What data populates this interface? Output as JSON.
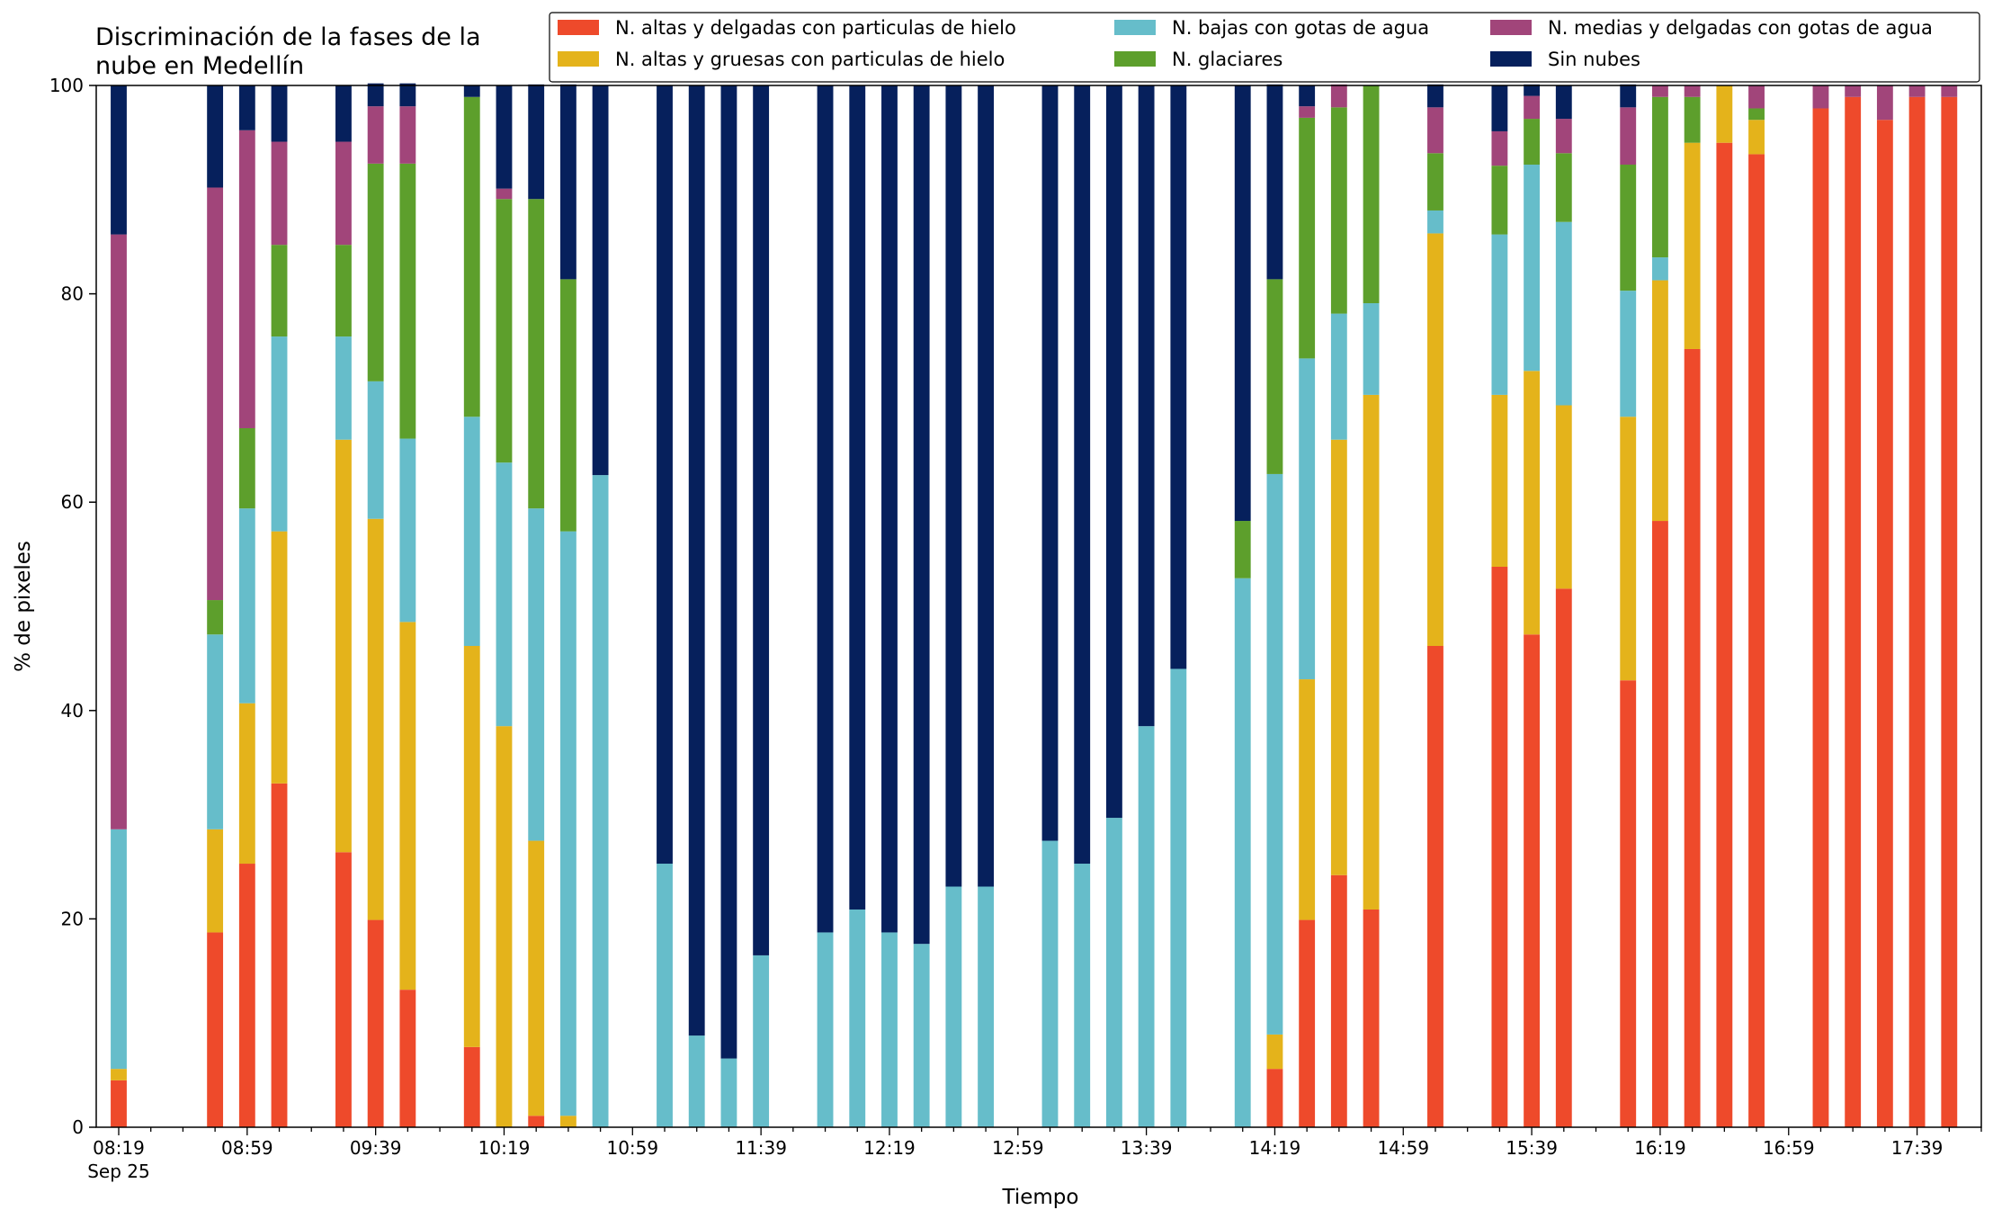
{
  "chart_data": {
    "type": "bar",
    "stacked": true,
    "title": "Discriminación de la fases de la nube en Medellín",
    "title_lines": [
      "Discriminación de la fases de la",
      "nube en Medellín"
    ],
    "xlabel": "Tiempo",
    "ylabel": "% de pixeles",
    "ylim": [
      0,
      100
    ],
    "yticks": [
      0,
      20,
      40,
      60,
      80,
      100
    ],
    "xlim_minutes_since_0819": [
      -7,
      580
    ],
    "interval_minutes": 10,
    "xtick_labels": [
      "08:19",
      "08:59",
      "09:39",
      "10:19",
      "10:59",
      "11:39",
      "12:19",
      "12:59",
      "13:39",
      "14:19",
      "14:59",
      "15:39",
      "16:19",
      "16:59",
      "17:39"
    ],
    "xtick_date": "Sep 25",
    "grid": false,
    "legend_position": "top",
    "x": [
      "08:19",
      "08:39",
      "08:49",
      "08:59",
      "09:09",
      "09:29",
      "09:39",
      "09:49",
      "10:09",
      "10:19",
      "10:29",
      "10:39",
      "10:49",
      "11:09",
      "11:19",
      "11:29",
      "11:39",
      "11:59",
      "12:09",
      "12:19",
      "12:29",
      "12:39",
      "12:49",
      "13:09",
      "13:19",
      "13:29",
      "13:39",
      "13:49",
      "14:09",
      "14:19",
      "14:29",
      "14:39",
      "14:49",
      "15:09",
      "15:29",
      "15:39",
      "15:49",
      "16:09",
      "16:19",
      "16:29",
      "16:39",
      "16:49",
      "17:09",
      "17:19",
      "17:29",
      "17:39",
      "17:49"
    ],
    "series": [
      {
        "name": "N. altas y delgadas con particulas de hielo",
        "color": "#ee4a2b",
        "values": [
          4.5,
          0,
          18.7,
          25.3,
          33.0,
          26.4,
          19.9,
          13.2,
          7.7,
          0,
          1.1,
          0,
          0,
          0,
          0,
          0,
          0,
          0,
          0,
          0,
          0,
          0,
          0,
          0,
          0,
          0,
          0,
          0,
          0,
          5.6,
          19.9,
          24.2,
          20.9,
          46.2,
          53.8,
          47.3,
          51.7,
          42.9,
          58.2,
          74.7,
          94.5,
          93.4,
          97.8,
          98.9,
          96.7,
          98.9,
          98.9
        ]
      },
      {
        "name": "N. altas y gruesas con particulas de hielo",
        "color": "#e4b31b",
        "values": [
          1.1,
          0,
          9.9,
          15.4,
          24.2,
          39.6,
          38.5,
          35.3,
          38.5,
          38.5,
          26.4,
          1.1,
          0,
          0,
          0,
          0,
          0,
          0,
          0,
          0,
          0,
          0,
          0,
          0,
          0,
          0,
          0,
          0,
          0,
          3.3,
          23.1,
          41.8,
          49.4,
          39.6,
          16.5,
          25.3,
          17.6,
          25.3,
          23.1,
          19.8,
          5.5,
          3.3,
          0,
          0,
          0,
          0,
          0
        ]
      },
      {
        "name": "N. bajas con gotas de agua",
        "color": "#66bdca",
        "values": [
          23.0,
          0,
          18.7,
          18.7,
          18.7,
          9.9,
          13.2,
          17.6,
          22.0,
          25.3,
          31.9,
          56.1,
          62.6,
          25.3,
          8.8,
          6.6,
          16.5,
          18.7,
          20.9,
          18.7,
          17.6,
          23.1,
          23.1,
          27.5,
          25.3,
          29.7,
          38.5,
          44.0,
          52.7,
          53.8,
          30.8,
          12.1,
          8.8,
          2.2,
          15.4,
          19.8,
          17.6,
          12.1,
          2.2,
          0,
          0,
          0,
          0,
          0,
          0,
          0,
          0
        ]
      },
      {
        "name": "N. glaciares",
        "color": "#5d9f2c",
        "values": [
          0,
          0,
          3.3,
          7.7,
          8.8,
          8.8,
          20.9,
          26.4,
          30.7,
          25.3,
          29.7,
          24.2,
          0,
          0,
          0,
          0,
          0,
          0,
          0,
          0,
          0,
          0,
          0,
          0,
          0,
          0,
          0,
          0,
          5.5,
          18.7,
          23.1,
          19.8,
          20.9,
          5.5,
          6.6,
          4.4,
          6.6,
          12.1,
          15.4,
          4.4,
          0,
          1.1,
          0,
          0,
          0,
          0,
          0
        ]
      },
      {
        "name": "N. medias y delgadas con gotas de agua",
        "color": "#a1457a",
        "values": [
          57.1,
          0,
          39.6,
          28.6,
          9.9,
          9.9,
          5.5,
          5.5,
          0,
          1.0,
          0,
          0,
          0,
          0,
          0,
          0,
          0,
          0,
          0,
          0,
          0,
          0,
          0,
          0,
          0,
          0,
          0,
          0,
          0,
          0,
          1.1,
          2.2,
          0,
          4.4,
          3.3,
          2.2,
          3.3,
          5.5,
          1.1,
          1.1,
          0,
          2.2,
          2.2,
          1.1,
          3.3,
          1.1,
          1.1
        ]
      },
      {
        "name": "Sin nubes",
        "color": "#06205c",
        "values": [
          14.3,
          0,
          9.8,
          4.3,
          5.4,
          5.4,
          2.2,
          2.2,
          1.1,
          9.9,
          11.0,
          18.7,
          37.4,
          74.7,
          91.2,
          93.4,
          83.5,
          81.3,
          79.1,
          81.3,
          82.4,
          76.9,
          76.9,
          72.5,
          74.7,
          70.3,
          61.5,
          56.0,
          41.8,
          18.7,
          2.0,
          0,
          0,
          2.2,
          4.4,
          1.1,
          3.2,
          2.2,
          0,
          0,
          0,
          0,
          0,
          0,
          0,
          0,
          0
        ]
      }
    ]
  }
}
